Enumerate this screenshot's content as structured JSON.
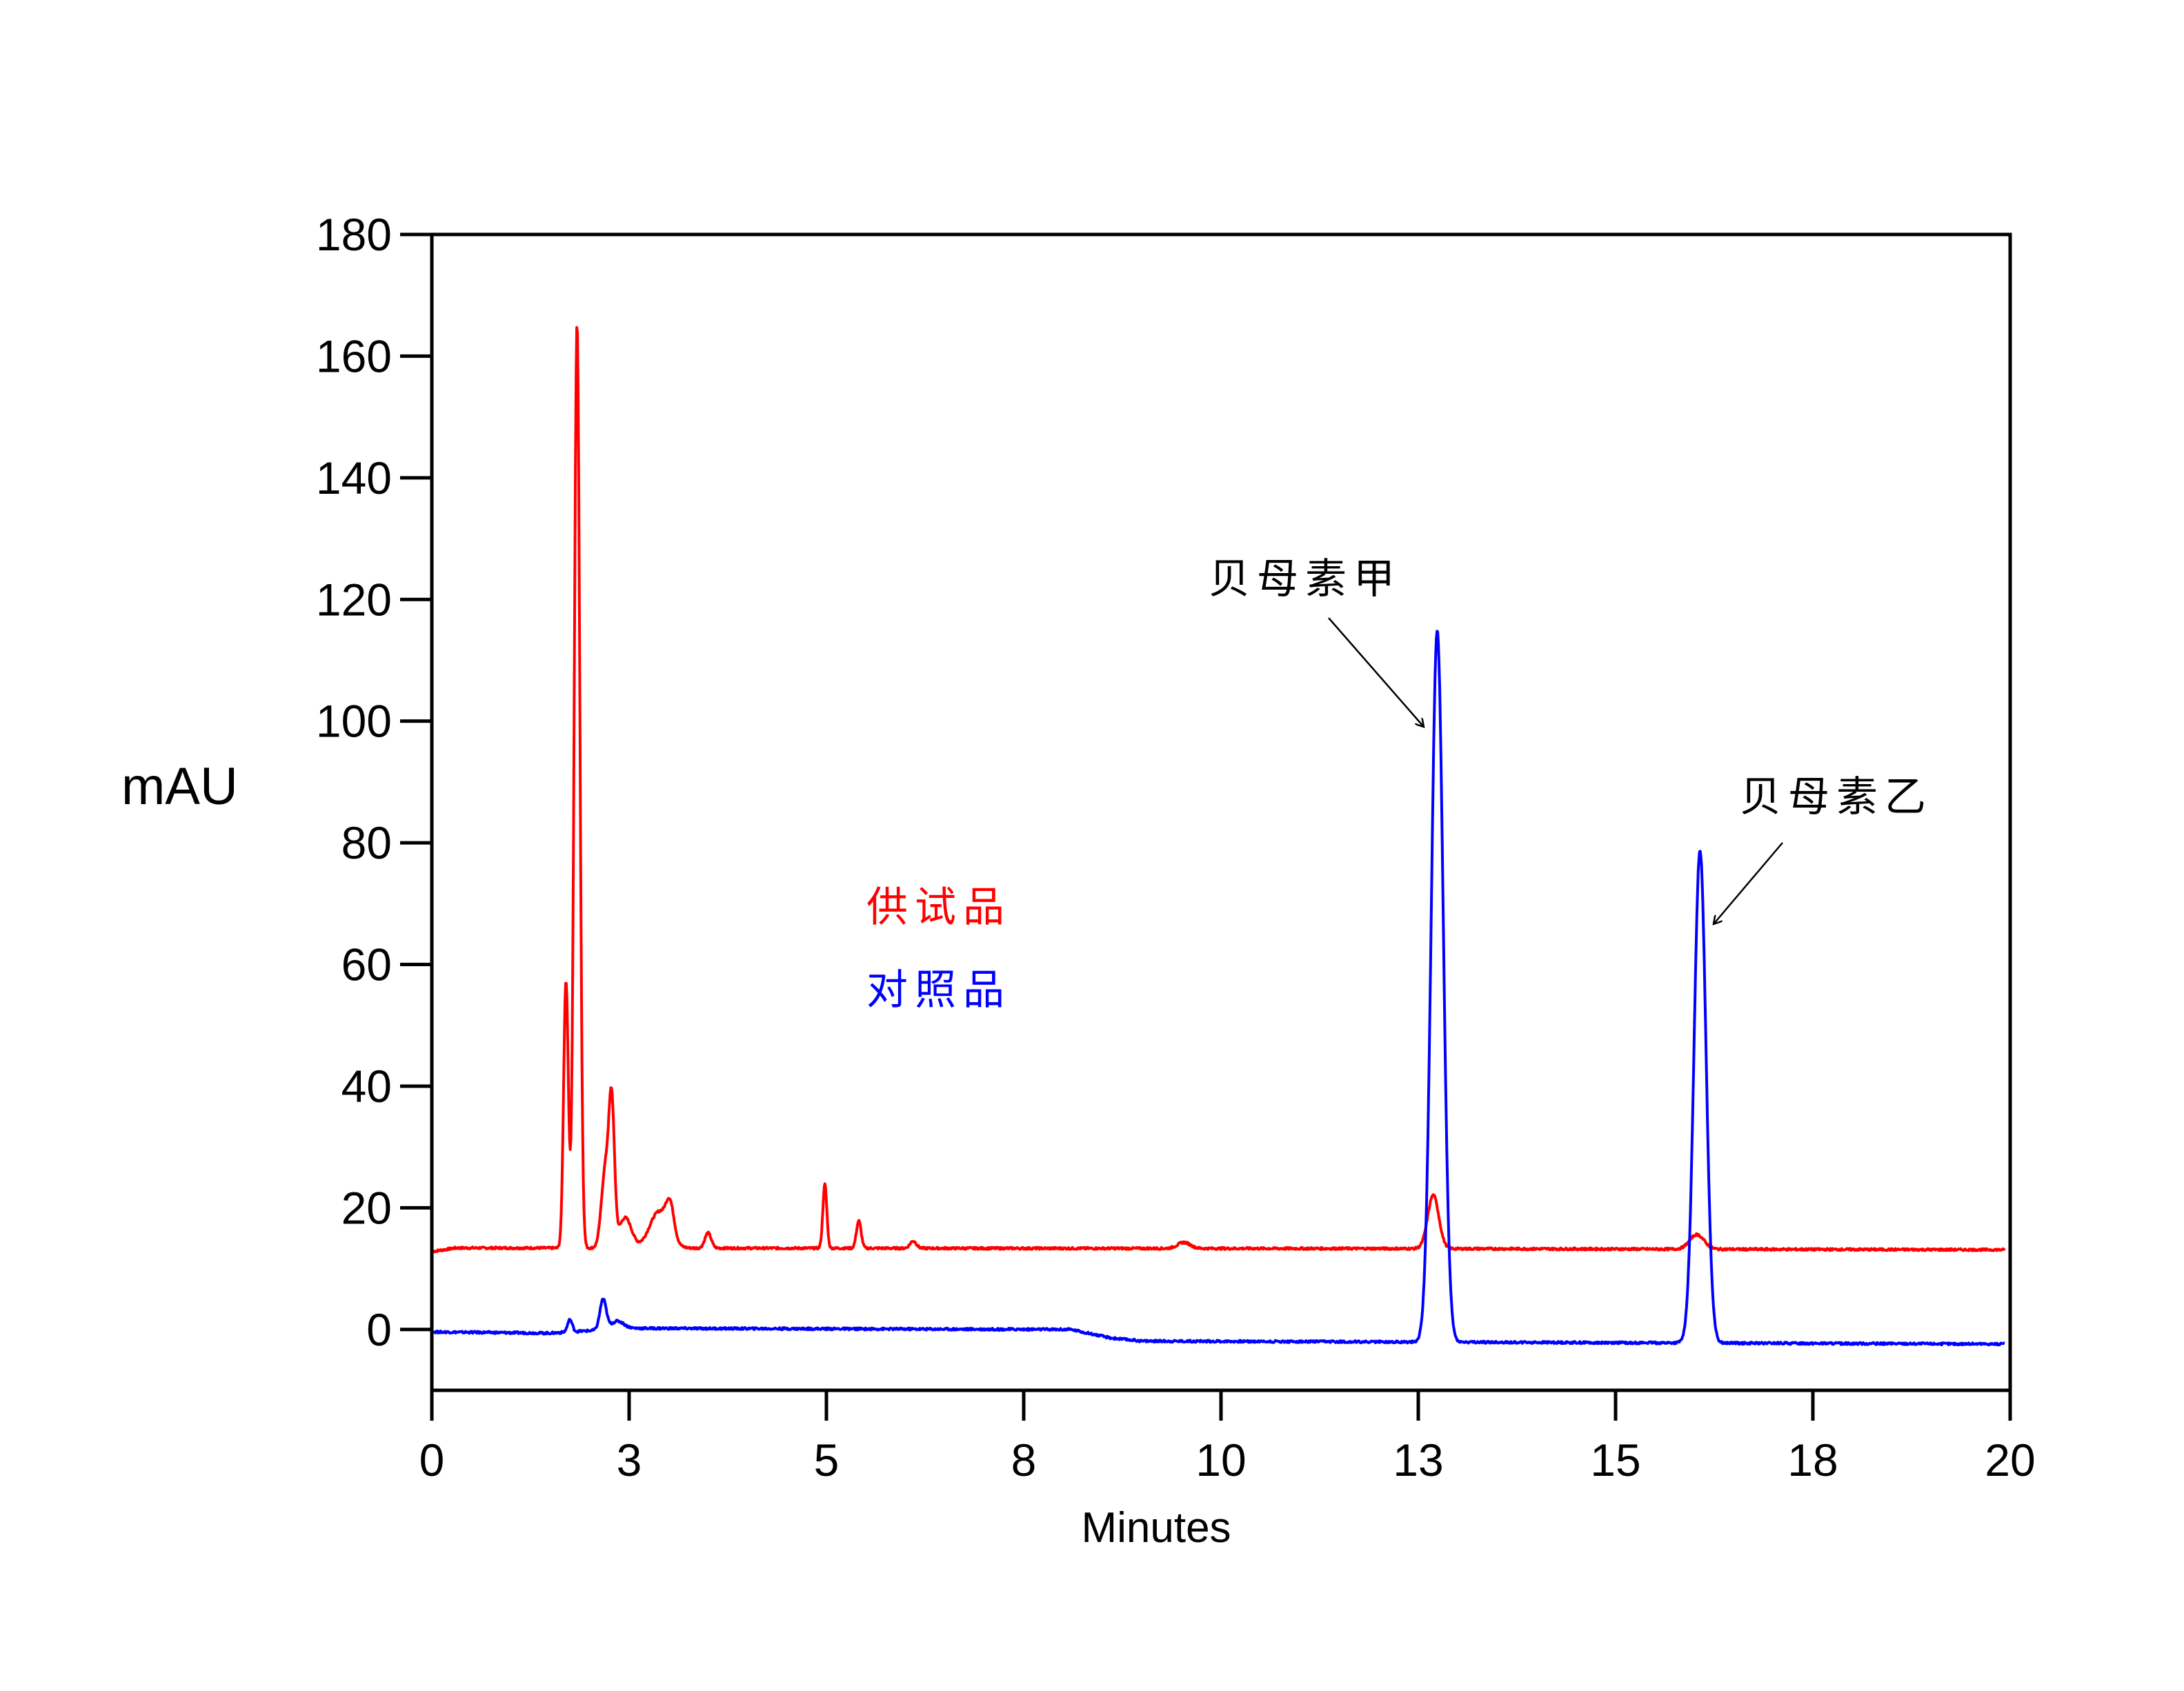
{
  "chart_data": {
    "type": "line",
    "title": "",
    "xlabel": "Minutes",
    "ylabel": "mAU",
    "xlim": [
      0,
      20
    ],
    "ylim": [
      -10,
      180
    ],
    "grid": false,
    "x_ticks": [
      0,
      2.5,
      5,
      7.5,
      10,
      12.5,
      15,
      17.5,
      20
    ],
    "x_tick_labels": [
      "0",
      "3",
      "5",
      "8",
      "10",
      "13",
      "15",
      "18",
      "20"
    ],
    "y_ticks": [
      0,
      20,
      40,
      60,
      80,
      100,
      120,
      140,
      160,
      180
    ],
    "y_tick_labels": [
      "0",
      "20",
      "40",
      "60",
      "80",
      "100",
      "120",
      "140",
      "160",
      "180"
    ],
    "legend": {
      "placement": "center-left",
      "entries": [
        {
          "label": "供试品",
          "color": "#ff0000"
        },
        {
          "label": "对照品",
          "color": "#0000ff"
        }
      ]
    },
    "series": [
      {
        "name": "供试品",
        "color": "#ff0000",
        "baseline": [
          [
            0,
            12.8
          ],
          [
            0.3,
            13.4
          ],
          [
            12,
            13.3
          ],
          [
            20,
            13.1
          ]
        ],
        "peaks": [
          {
            "rt": 1.7,
            "height": 44,
            "sigma": 0.03
          },
          {
            "rt": 1.84,
            "height": 152,
            "sigma": 0.035
          },
          {
            "rt": 2.2,
            "height": 13,
            "sigma": 0.05
          },
          {
            "rt": 2.28,
            "height": 22,
            "sigma": 0.035
          },
          {
            "rt": 2.45,
            "height": 5,
            "sigma": 0.08
          },
          {
            "rt": 2.88,
            "height": 6,
            "sigma": 0.12
          },
          {
            "rt": 3.02,
            "height": 5,
            "sigma": 0.05
          },
          {
            "rt": 3.5,
            "height": 2.5,
            "sigma": 0.04
          },
          {
            "rt": 4.98,
            "height": 10.5,
            "sigma": 0.025
          },
          {
            "rt": 5.41,
            "height": 4.5,
            "sigma": 0.03
          },
          {
            "rt": 6.1,
            "height": 1.2,
            "sigma": 0.04
          },
          {
            "rt": 9.53,
            "height": 1.0,
            "sigma": 0.08
          },
          {
            "rt": 12.69,
            "height": 8.8,
            "sigma": 0.07
          },
          {
            "rt": 16.03,
            "height": 2.4,
            "sigma": 0.09
          }
        ]
      },
      {
        "name": "对照品",
        "color": "#0000ff",
        "baseline": [
          [
            0,
            -0.4
          ],
          [
            1.5,
            -0.6
          ],
          [
            2.5,
            0.2
          ],
          [
            8.1,
            0
          ],
          [
            8.6,
            -1.4
          ],
          [
            9.0,
            -1.9
          ],
          [
            20,
            -2.4
          ]
        ],
        "peaks": [
          {
            "rt": 1.75,
            "height": 2.0,
            "sigma": 0.03
          },
          {
            "rt": 2.17,
            "height": 5.0,
            "sigma": 0.04
          },
          {
            "rt": 2.35,
            "height": 1.3,
            "sigma": 0.08
          },
          {
            "rt": 12.74,
            "height": 117,
            "sigma": 0.075
          },
          {
            "rt": 16.07,
            "height": 81,
            "sigma": 0.075
          }
        ]
      }
    ],
    "annotations": [
      {
        "text": "贝母素甲",
        "target_x": 12.72,
        "target_y": 100
      },
      {
        "text": "贝母素乙",
        "target_x": 16.1,
        "target_y": 67
      }
    ]
  }
}
